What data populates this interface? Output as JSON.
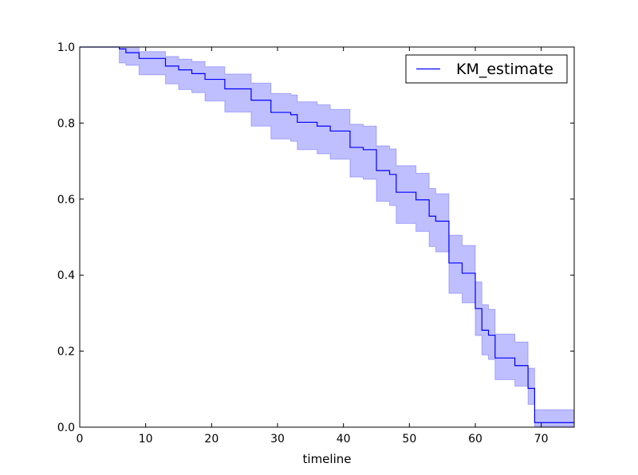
{
  "chart_data": {
    "type": "line",
    "title": "",
    "xlabel": "timeline",
    "ylabel": "",
    "xlim": [
      0,
      75
    ],
    "ylim": [
      0.0,
      1.0
    ],
    "x_ticks": [
      0,
      10,
      20,
      30,
      40,
      50,
      60,
      70
    ],
    "y_ticks": [
      0.0,
      0.2,
      0.4,
      0.6,
      0.8,
      1.0
    ],
    "x_tick_labels": [
      "0",
      "10",
      "20",
      "30",
      "40",
      "50",
      "60",
      "70"
    ],
    "y_tick_labels": [
      "0.0",
      "0.2",
      "0.4",
      "0.6",
      "0.8",
      "1.0"
    ],
    "grid": false,
    "legend_position": "top-right",
    "series": [
      {
        "name": "KM_estimate",
        "color": "#0000ff",
        "band_color": "#0000ff",
        "step": "post",
        "points": [
          {
            "x": 0,
            "y": 1.0,
            "lower": 1.0,
            "upper": 1.0
          },
          {
            "x": 6,
            "y": 0.995,
            "lower": 0.958,
            "upper": 1.0
          },
          {
            "x": 7,
            "y": 0.985,
            "lower": 0.952,
            "upper": 1.0
          },
          {
            "x": 9,
            "y": 0.97,
            "lower": 0.927,
            "upper": 0.988
          },
          {
            "x": 13,
            "y": 0.95,
            "lower": 0.903,
            "upper": 0.975
          },
          {
            "x": 15,
            "y": 0.94,
            "lower": 0.888,
            "upper": 0.968
          },
          {
            "x": 17,
            "y": 0.93,
            "lower": 0.88,
            "upper": 0.962
          },
          {
            "x": 19,
            "y": 0.915,
            "lower": 0.858,
            "upper": 0.948
          },
          {
            "x": 22,
            "y": 0.89,
            "lower": 0.829,
            "upper": 0.929
          },
          {
            "x": 26,
            "y": 0.86,
            "lower": 0.792,
            "upper": 0.905
          },
          {
            "x": 29,
            "y": 0.828,
            "lower": 0.758,
            "upper": 0.878
          },
          {
            "x": 32,
            "y": 0.822,
            "lower": 0.752,
            "upper": 0.874
          },
          {
            "x": 33,
            "y": 0.802,
            "lower": 0.73,
            "upper": 0.856
          },
          {
            "x": 36,
            "y": 0.792,
            "lower": 0.719,
            "upper": 0.848
          },
          {
            "x": 38,
            "y": 0.779,
            "lower": 0.705,
            "upper": 0.836
          },
          {
            "x": 41,
            "y": 0.736,
            "lower": 0.658,
            "upper": 0.797
          },
          {
            "x": 43,
            "y": 0.73,
            "lower": 0.652,
            "upper": 0.792
          },
          {
            "x": 45,
            "y": 0.675,
            "lower": 0.594,
            "upper": 0.74
          },
          {
            "x": 47,
            "y": 0.665,
            "lower": 0.583,
            "upper": 0.732
          },
          {
            "x": 48,
            "y": 0.618,
            "lower": 0.536,
            "upper": 0.688
          },
          {
            "x": 51,
            "y": 0.598,
            "lower": 0.515,
            "upper": 0.668
          },
          {
            "x": 53,
            "y": 0.555,
            "lower": 0.475,
            "upper": 0.628
          },
          {
            "x": 54,
            "y": 0.542,
            "lower": 0.461,
            "upper": 0.614
          },
          {
            "x": 56,
            "y": 0.432,
            "lower": 0.352,
            "upper": 0.505
          },
          {
            "x": 58,
            "y": 0.405,
            "lower": 0.327,
            "upper": 0.478
          },
          {
            "x": 60,
            "y": 0.312,
            "lower": 0.241,
            "upper": 0.382
          },
          {
            "x": 61,
            "y": 0.255,
            "lower": 0.19,
            "upper": 0.322
          },
          {
            "x": 62,
            "y": 0.242,
            "lower": 0.178,
            "upper": 0.31
          },
          {
            "x": 63,
            "y": 0.182,
            "lower": 0.125,
            "upper": 0.245
          },
          {
            "x": 66,
            "y": 0.162,
            "lower": 0.108,
            "upper": 0.224
          },
          {
            "x": 68,
            "y": 0.102,
            "lower": 0.06,
            "upper": 0.155
          },
          {
            "x": 69,
            "y": 0.012,
            "lower": 0.002,
            "upper": 0.046
          },
          {
            "x": 75,
            "y": 0.012,
            "lower": 0.002,
            "upper": 0.046
          }
        ]
      }
    ]
  }
}
